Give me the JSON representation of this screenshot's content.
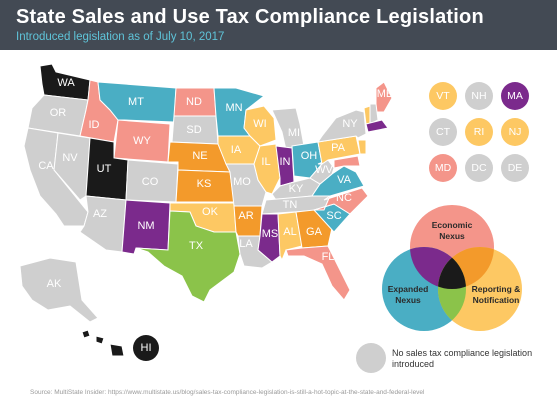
{
  "header": {
    "title": "State Sales and Use Tax Compliance Legislation",
    "subtitle": "Introduced legislation as of July 10, 2017"
  },
  "colors": {
    "economic_nexus": "#f4958a",
    "expanded_nexus": "#4aaec4",
    "reporting_notification": "#fdc863",
    "economic_expanded": "#7b2a8c",
    "economic_reporting": "#f39a2b",
    "expanded_reporting": "#8bc34a",
    "all_three": "#1a1a1a",
    "none": "#cfcfcf",
    "header_bg": "#434a54",
    "subtitle": "#5fc4d9"
  },
  "states": [
    {
      "abbr": "WA",
      "category": "all_three"
    },
    {
      "abbr": "OR",
      "category": "none"
    },
    {
      "abbr": "CA",
      "category": "none"
    },
    {
      "abbr": "NV",
      "category": "none"
    },
    {
      "abbr": "ID",
      "category": "economic_nexus"
    },
    {
      "abbr": "MT",
      "category": "expanded_nexus"
    },
    {
      "abbr": "WY",
      "category": "economic_nexus"
    },
    {
      "abbr": "UT",
      "category": "all_three"
    },
    {
      "abbr": "AZ",
      "category": "none"
    },
    {
      "abbr": "CO",
      "category": "none"
    },
    {
      "abbr": "NM",
      "category": "economic_expanded"
    },
    {
      "abbr": "ND",
      "category": "economic_nexus"
    },
    {
      "abbr": "SD",
      "category": "none"
    },
    {
      "abbr": "NE",
      "category": "economic_reporting"
    },
    {
      "abbr": "KS",
      "category": "economic_reporting"
    },
    {
      "abbr": "OK",
      "category": "reporting_notification"
    },
    {
      "abbr": "TX",
      "category": "expanded_reporting"
    },
    {
      "abbr": "MN",
      "category": "expanded_nexus"
    },
    {
      "abbr": "IA",
      "category": "reporting_notification"
    },
    {
      "abbr": "MO",
      "category": "none"
    },
    {
      "abbr": "AR",
      "category": "economic_reporting"
    },
    {
      "abbr": "LA",
      "category": "none"
    },
    {
      "abbr": "WI",
      "category": "reporting_notification"
    },
    {
      "abbr": "IL",
      "category": "reporting_notification"
    },
    {
      "abbr": "MI",
      "category": "none"
    },
    {
      "abbr": "IN",
      "category": "economic_expanded"
    },
    {
      "abbr": "OH",
      "category": "expanded_nexus"
    },
    {
      "abbr": "KY",
      "category": "none"
    },
    {
      "abbr": "TN",
      "category": "none"
    },
    {
      "abbr": "MS",
      "category": "economic_expanded"
    },
    {
      "abbr": "AL",
      "category": "reporting_notification"
    },
    {
      "abbr": "GA",
      "category": "economic_reporting"
    },
    {
      "abbr": "FL",
      "category": "economic_nexus"
    },
    {
      "abbr": "SC",
      "category": "expanded_nexus"
    },
    {
      "abbr": "NC",
      "category": "economic_nexus"
    },
    {
      "abbr": "VA",
      "category": "expanded_nexus"
    },
    {
      "abbr": "WV",
      "category": "none"
    },
    {
      "abbr": "PA",
      "category": "reporting_notification"
    },
    {
      "abbr": "NY",
      "category": "none"
    },
    {
      "abbr": "ME",
      "category": "economic_nexus"
    },
    {
      "abbr": "AK",
      "category": "none"
    },
    {
      "abbr": "HI",
      "category": "all_three"
    }
  ],
  "small_states": [
    {
      "abbr": "VT",
      "category": "reporting_notification"
    },
    {
      "abbr": "NH",
      "category": "none"
    },
    {
      "abbr": "MA",
      "category": "economic_expanded"
    },
    {
      "abbr": "CT",
      "category": "none"
    },
    {
      "abbr": "RI",
      "category": "reporting_notification"
    },
    {
      "abbr": "NJ",
      "category": "reporting_notification"
    },
    {
      "abbr": "MD",
      "category": "economic_nexus"
    },
    {
      "abbr": "DC",
      "category": "none"
    },
    {
      "abbr": "DE",
      "category": "none"
    }
  ],
  "venn": {
    "economic": "Economic Nexus",
    "expanded": "Expanded Nexus",
    "reporting": "Reporting & Notification"
  },
  "legend": {
    "none_text": "No sales tax compliance legislation introduced"
  },
  "source": "Source: MultiState Insider: https://www.multistate.us/blog/sales-tax-compliance-legislation-is-still-a-hot-topic-at-the-state-and-federal-level"
}
